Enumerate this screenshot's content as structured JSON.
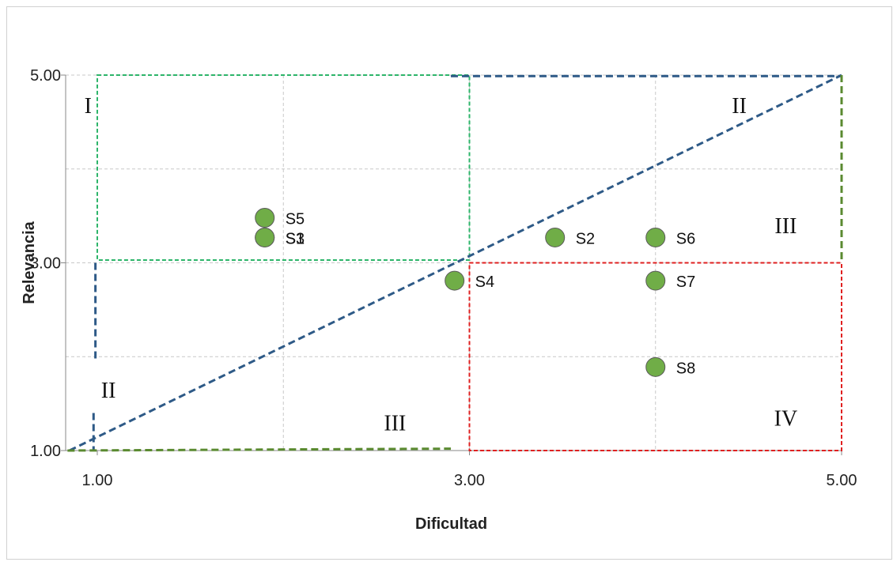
{
  "chart_data": {
    "type": "scatter",
    "title": "",
    "xlabel": "Dificultad",
    "ylabel": "Relevancia",
    "xlim": [
      0.83,
      5.0
    ],
    "ylim": [
      1.0,
      5.0
    ],
    "x_ticks": [
      "1.00",
      "3.00",
      "5.00"
    ],
    "y_ticks": [
      "1.00",
      "3.00",
      "5.00"
    ],
    "grid": true,
    "marker_color": "#70ad47",
    "points": [
      {
        "label": "S5",
        "x": 1.9,
        "y": 3.48
      },
      {
        "label": "S3",
        "x": 1.9,
        "y": 3.27
      },
      {
        "label": "S1",
        "x": 1.9,
        "y": 3.27
      },
      {
        "label": "S2",
        "x": 3.46,
        "y": 3.27
      },
      {
        "label": "S6",
        "x": 4.0,
        "y": 3.27
      },
      {
        "label": "S4",
        "x": 2.92,
        "y": 2.81
      },
      {
        "label": "S7",
        "x": 4.0,
        "y": 2.81
      },
      {
        "label": "S8",
        "x": 4.0,
        "y": 1.89
      }
    ],
    "zones": [
      {
        "label": "I",
        "x": 0.95,
        "y": 4.68
      },
      {
        "label": "II",
        "x": 4.45,
        "y": 4.68
      },
      {
        "label": "III",
        "x": 4.7,
        "y": 3.4
      },
      {
        "label": "II",
        "x": 1.06,
        "y": 1.65
      },
      {
        "label": "III",
        "x": 2.6,
        "y": 1.3
      },
      {
        "label": "IV",
        "x": 4.7,
        "y": 1.35
      }
    ],
    "guides": [
      {
        "kind": "rect",
        "color": "#2db56a",
        "x1": 1.0,
        "y1": 3.03,
        "x2": 3.0,
        "y2": 5.0
      },
      {
        "kind": "rect",
        "color": "#e02020",
        "x1": 3.0,
        "y1": 1.0,
        "x2": 5.0,
        "y2": 3.0
      },
      {
        "kind": "line",
        "color": "#2e5a87",
        "x1": 0.85,
        "y1": 1.0,
        "x2": 5.0,
        "y2": 5.0
      },
      {
        "kind": "line",
        "color": "#2e5a87",
        "x1": 2.9,
        "y1": 4.99,
        "x2": 5.0,
        "y2": 4.99
      },
      {
        "kind": "line",
        "color": "#2e5a87",
        "x1": 0.99,
        "y1": 3.0,
        "x2": 0.99,
        "y2": 1.95
      },
      {
        "kind": "line",
        "color": "#2e5a87",
        "x1": 0.98,
        "y1": 1.4,
        "x2": 0.98,
        "y2": 1.0
      },
      {
        "kind": "line",
        "color": "#5a8a30",
        "x1": 0.84,
        "y1": 1.0,
        "x2": 2.9,
        "y2": 1.02
      },
      {
        "kind": "line",
        "color": "#5a8a30",
        "x1": 5.0,
        "y1": 5.0,
        "x2": 5.0,
        "y2": 3.0
      }
    ]
  }
}
